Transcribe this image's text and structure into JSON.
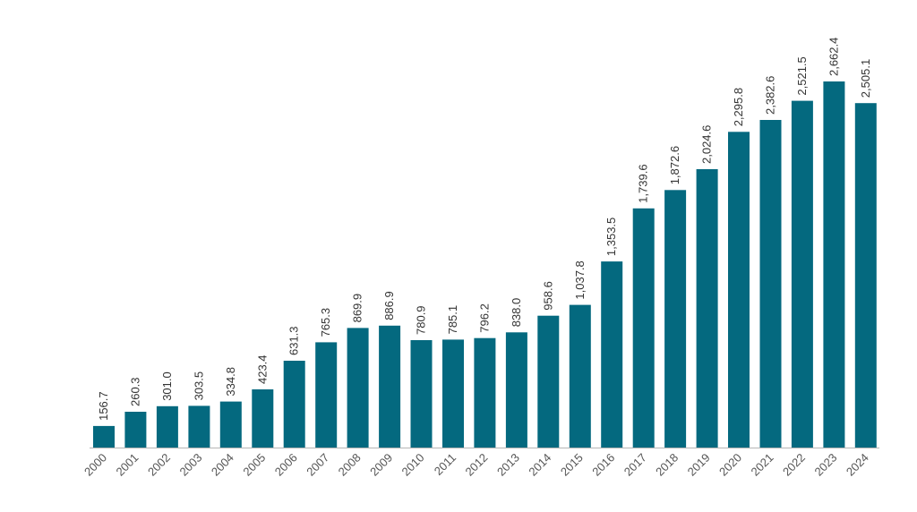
{
  "chart_data": {
    "type": "bar",
    "title": "",
    "xlabel": "",
    "ylabel": "",
    "grid": false,
    "bar_color": "#04697f",
    "categories": [
      "2000",
      "2001",
      "2002",
      "2003",
      "2004",
      "2005",
      "2006",
      "2007",
      "2008",
      "2009",
      "2010",
      "2011",
      "2012",
      "2013",
      "2014",
      "2015",
      "2016",
      "2017",
      "2018",
      "2019",
      "2020",
      "2021",
      "2022",
      "2023",
      "2024"
    ],
    "values": [
      156.7,
      260.3,
      301.0,
      303.5,
      334.8,
      423.4,
      631.3,
      765.3,
      869.9,
      886.9,
      780.9,
      785.1,
      796.2,
      838.0,
      958.6,
      1037.8,
      1353.5,
      1739.6,
      1872.6,
      2024.6,
      2295.8,
      2382.6,
      2521.5,
      2662.4,
      2505.1
    ],
    "value_labels": [
      "156.7",
      "260.3",
      "301.0",
      "303.5",
      "334.8",
      "423.4",
      "631.3",
      "765.3",
      "869.9",
      "886.9",
      "780.9",
      "785.1",
      "796.2",
      "838.0",
      "958.6",
      "1,037.8",
      "1,353.5",
      "1,739.6",
      "1,872.6",
      "2,024.6",
      "2,295.8",
      "2,382.6",
      "2,521.5",
      "2,662.4",
      "2,505.1"
    ],
    "ylim": [
      0,
      2662.4
    ]
  }
}
